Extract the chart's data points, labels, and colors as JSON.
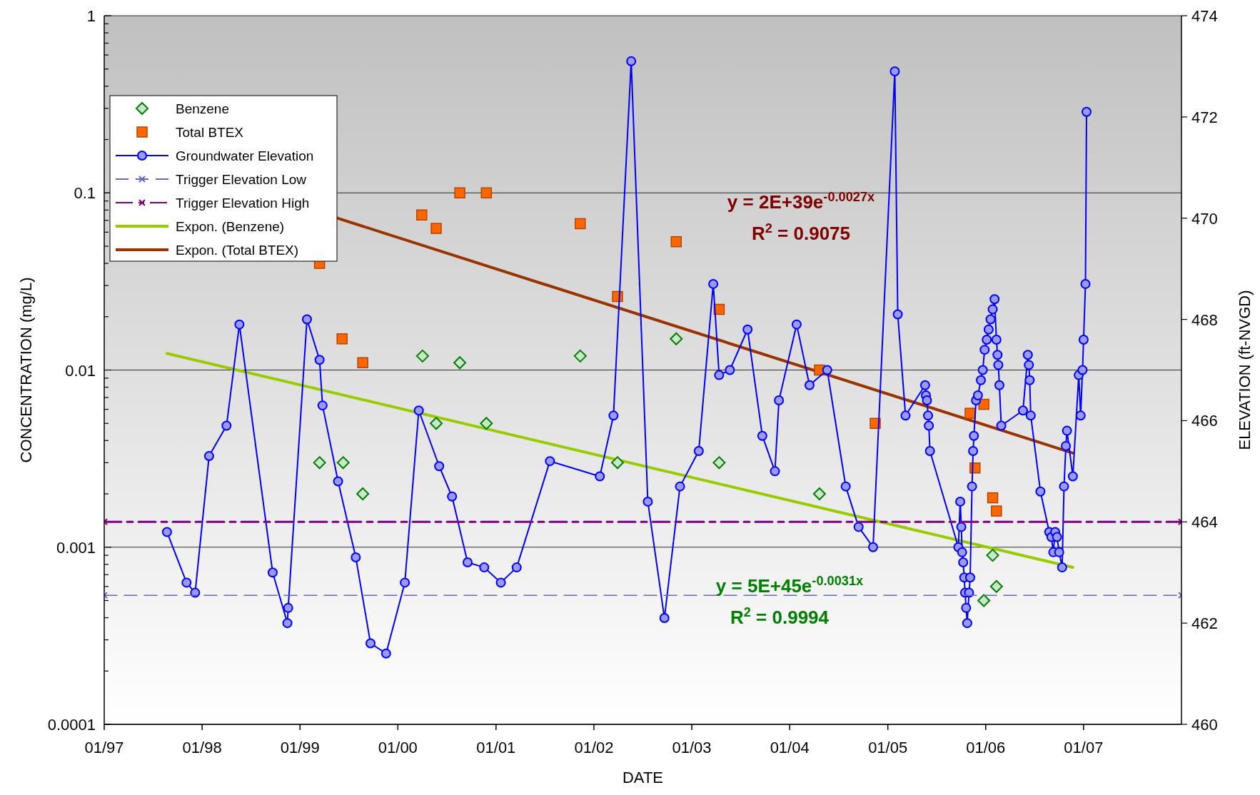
{
  "chart_data": {
    "type": "scatter",
    "xlabel": "DATE",
    "ylabel": "CONCENTRATION (mg/L)",
    "y2label": "ELEVATION (ft-NVGD)",
    "xlim": [
      "1997-01-01",
      "2008-01-01"
    ],
    "xticks": [
      {
        "value": "1997-01-01",
        "label": "01/97"
      },
      {
        "value": "1998-01-01",
        "label": "01/98"
      },
      {
        "value": "1999-01-01",
        "label": "01/99"
      },
      {
        "value": "2000-01-01",
        "label": "01/00"
      },
      {
        "value": "2001-01-01",
        "label": "01/01"
      },
      {
        "value": "2002-01-01",
        "label": "01/02"
      },
      {
        "value": "2003-01-01",
        "label": "01/03"
      },
      {
        "value": "2004-01-01",
        "label": "01/04"
      },
      {
        "value": "2005-01-01",
        "label": "01/05"
      },
      {
        "value": "2006-01-01",
        "label": "01/06"
      },
      {
        "value": "2007-01-01",
        "label": "01/07"
      }
    ],
    "log": "y",
    "ylim": [
      0.0001,
      1
    ],
    "yticks": [
      0.0001,
      {
        "value": 0.0002,
        "label": null
      },
      {
        "value": 0.0003,
        "label": null
      },
      {
        "value": 0.0004,
        "label": null
      },
      {
        "value": 0.0005,
        "label": null
      },
      {
        "value": 0.0006,
        "label": null
      },
      {
        "value": 0.0007,
        "label": null
      },
      {
        "value": 0.0008,
        "label": null
      },
      {
        "value": 0.0009,
        "label": null
      },
      0.001,
      {
        "value": 0.002,
        "label": null
      },
      {
        "value": 0.003,
        "label": null
      },
      {
        "value": 0.004,
        "label": null
      },
      {
        "value": 0.005,
        "label": null
      },
      {
        "value": 0.006,
        "label": null
      },
      {
        "value": 0.007,
        "label": null
      },
      {
        "value": 0.008,
        "label": null
      },
      {
        "value": 0.009,
        "label": null
      },
      0.01,
      {
        "value": 0.02,
        "label": null
      },
      {
        "value": 0.03,
        "label": null
      },
      {
        "value": 0.04,
        "label": null
      },
      {
        "value": 0.05,
        "label": null
      },
      {
        "value": 0.06,
        "label": null
      },
      {
        "value": 0.07,
        "label": null
      },
      {
        "value": 0.08,
        "label": null
      },
      {
        "value": 0.09,
        "label": null
      },
      0.1,
      {
        "value": 0.2,
        "label": null
      },
      {
        "value": 0.3,
        "label": null
      },
      {
        "value": 0.4,
        "label": null
      },
      {
        "value": 0.5,
        "label": null
      },
      {
        "value": 0.6,
        "label": null
      },
      {
        "value": 0.7,
        "label": null
      },
      {
        "value": 0.8,
        "label": null
      },
      {
        "value": 0.9,
        "label": null
      },
      1
    ],
    "y2lim": [
      460,
      474
    ],
    "y2ticks": [
      460,
      462,
      464,
      466,
      468,
      470,
      472,
      474
    ],
    "grid": "y",
    "legend": "top left",
    "series": [
      {
        "name": "Benzene",
        "color": "#008000",
        "marker": "diamond",
        "x": [
          "1999-03-15",
          "1999-06-11",
          "1999-08-23",
          "2000-04-02",
          "2000-05-23",
          "2000-08-19",
          "2000-11-26",
          "2001-11-11",
          "2002-03-30",
          "2002-11-04",
          "2003-04-13",
          "2004-04-21",
          "2005-12-25",
          "2006-01-27",
          "2006-02-10"
        ],
        "values": [
          0.003,
          0.003,
          0.002,
          0.012,
          0.005,
          0.011,
          0.005,
          0.012,
          0.003,
          0.015,
          0.003,
          0.002,
          0.0005,
          0.0009,
          0.0006
        ]
      },
      {
        "name": "Total BTEX",
        "color": "#ff6600",
        "marker": "square",
        "x": [
          "1999-03-15",
          "1999-06-07",
          "1999-08-23",
          "2000-03-30",
          "2000-05-23",
          "2000-08-19",
          "2000-11-26",
          "2001-11-11",
          "2002-03-30",
          "2002-11-04",
          "2003-04-13",
          "2004-04-21",
          "2004-11-15",
          "2005-11-04",
          "2005-11-22",
          "2005-12-25",
          "2006-01-27",
          "2006-02-10"
        ],
        "values": [
          0.04,
          0.015,
          0.011,
          0.075,
          0.063,
          0.1,
          0.1,
          0.067,
          0.026,
          0.053,
          0.022,
          0.01,
          0.005,
          0.0057,
          0.0028,
          0.0064,
          0.0019,
          0.0016
        ]
      },
      {
        "name": "Groundwater Elevation",
        "type": "line",
        "axis": "y2",
        "color": "#0000ff",
        "marker": "circle",
        "line_style": "solid",
        "x": [
          "1997-08-23",
          "1997-11-04",
          "1997-12-06",
          "1998-01-27",
          "1998-04-02",
          "1998-05-20",
          "1998-09-21",
          "1998-11-15",
          "1998-11-18",
          "1999-01-27",
          "1999-03-15",
          "1999-03-26",
          "1999-05-23",
          "1999-07-28",
          "1999-09-21",
          "1999-11-18",
          "2000-01-27",
          "2000-03-19",
          "2000-06-03",
          "2000-07-21",
          "2000-09-17",
          "2000-11-18",
          "2001-01-19",
          "2001-03-19",
          "2001-07-21",
          "2002-01-23",
          "2002-03-15",
          "2002-05-20",
          "2002-07-21",
          "2002-09-21",
          "2002-11-18",
          "2003-01-27",
          "2003-03-22",
          "2003-04-13",
          "2003-05-23",
          "2003-07-28",
          "2003-09-21",
          "2003-11-07",
          "2003-11-22",
          "2004-01-27",
          "2004-03-15",
          "2004-05-20",
          "2004-07-28",
          "2004-09-14",
          "2004-11-07",
          "2005-01-27",
          "2005-02-07",
          "2005-03-08",
          "2005-05-20",
          "2005-05-23",
          "2005-05-27",
          "2005-05-31",
          "2005-06-03",
          "2005-06-07",
          "2005-09-21",
          "2005-09-28",
          "2005-10-02",
          "2005-10-05",
          "2005-10-09",
          "2005-10-13",
          "2005-10-16",
          "2005-10-20",
          "2005-10-24",
          "2005-10-31",
          "2005-11-04",
          "2005-11-11",
          "2005-11-15",
          "2005-11-18",
          "2005-11-26",
          "2005-12-03",
          "2005-12-14",
          "2005-12-21",
          "2005-12-28",
          "2006-01-05",
          "2006-01-12",
          "2006-01-19",
          "2006-01-27",
          "2006-02-03",
          "2006-02-10",
          "2006-02-14",
          "2006-02-17",
          "2006-02-21",
          "2006-02-28",
          "2006-05-20",
          "2006-06-07",
          "2006-06-11",
          "2006-06-14",
          "2006-06-18",
          "2006-07-24",
          "2006-08-26",
          "2006-09-03",
          "2006-09-10",
          "2006-09-17",
          "2006-09-24",
          "2006-10-02",
          "2006-10-13",
          "2006-10-20",
          "2006-10-27",
          "2006-10-31",
          "2006-11-22",
          "2006-12-14",
          "2006-12-21",
          "2006-12-28",
          "2007-01-01",
          "2007-01-08",
          "2007-01-12"
        ],
        "values": [
          463.8,
          462.8,
          462.6,
          465.3,
          465.9,
          467.9,
          463.0,
          462.0,
          462.3,
          468.0,
          467.2,
          466.3,
          464.8,
          463.3,
          461.6,
          461.4,
          462.8,
          466.2,
          465.1,
          464.5,
          463.2,
          463.1,
          462.8,
          463.1,
          465.2,
          464.9,
          466.1,
          473.1,
          464.4,
          462.1,
          464.7,
          465.4,
          468.7,
          466.9,
          467.0,
          467.8,
          465.7,
          465.0,
          466.4,
          467.9,
          466.7,
          467.0,
          464.7,
          463.9,
          463.5,
          472.9,
          468.1,
          466.1,
          466.7,
          466.5,
          466.4,
          466.1,
          465.9,
          465.4,
          463.5,
          464.4,
          463.9,
          463.4,
          463.2,
          462.9,
          462.6,
          462.3,
          462.0,
          462.6,
          462.9,
          464.7,
          465.4,
          465.7,
          466.4,
          466.5,
          466.8,
          467.0,
          467.4,
          467.6,
          467.8,
          468.0,
          468.2,
          468.4,
          467.6,
          467.3,
          467.1,
          466.7,
          465.9,
          466.2,
          467.3,
          467.1,
          466.8,
          466.1,
          464.6,
          463.8,
          463.7,
          463.4,
          463.8,
          463.7,
          463.4,
          463.1,
          464.7,
          465.5,
          465.8,
          464.9,
          466.9,
          466.1,
          467.0,
          467.6,
          468.7,
          472.1
        ]
      },
      {
        "name": "Trigger Elevation Low",
        "type": "line",
        "axis": "y2",
        "color": "#6666cc",
        "marker": "cross",
        "line_style": "dashed",
        "x": [
          "1997-01-01",
          "2008-01-01"
        ],
        "values": [
          462.55,
          462.55
        ]
      },
      {
        "name": "Trigger Elevation High",
        "type": "line",
        "axis": "y2",
        "color": "#800080",
        "marker": "cross",
        "line_style": "dashed",
        "x": [
          "1997-01-01",
          "2008-01-01"
        ],
        "values": [
          464,
          464
        ]
      },
      {
        "name": "Expon. (Benzene)",
        "type": "line",
        "color": "#99cc00",
        "marker": "none",
        "line_style": "solid",
        "x": [
          "1997-08-23",
          "2006-11-22"
        ],
        "values": [
          0.0124,
          0.00077
        ]
      },
      {
        "name": "Expon. (Total BTEX)",
        "type": "line",
        "color": "#993300",
        "marker": "none",
        "line_style": "solid",
        "x": [
          "1999-05-20",
          "2006-11-22"
        ],
        "values": [
          0.072,
          0.0034
        ]
      }
    ],
    "annotations": [
      "y = 2E+39e$^{-0.0027x}$",
      "R$^{2}$ = 0.9075",
      "y = 5E+45e$^{-0.0031x}$",
      "R$^{2}$ = 0.9994"
    ]
  }
}
